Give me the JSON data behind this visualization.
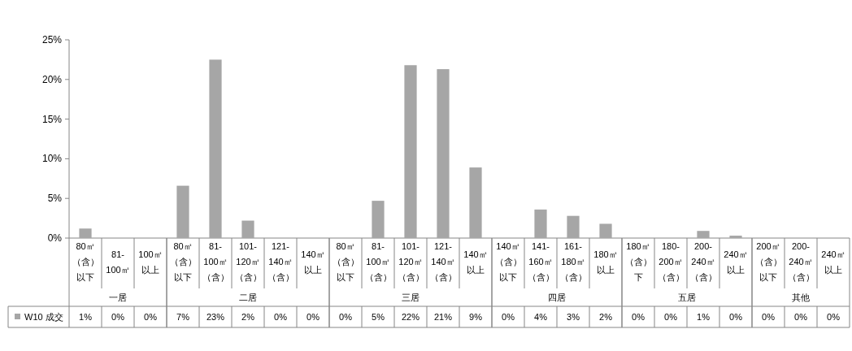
{
  "chart_data": [
    {
      "type": "bar",
      "title": "一居",
      "categories": [
        "80㎡（含）以下",
        "81-100㎡",
        "100㎡以上"
      ],
      "series": [
        {
          "name": "W10 成交",
          "color": "#a6a6a6",
          "values": [
            1.2,
            0,
            0
          ],
          "value_labels": [
            "1%",
            "0%",
            "0%"
          ]
        }
      ],
      "ylim": [
        0,
        25
      ],
      "yticks": [
        {
          "value": 0,
          "label": "0%"
        },
        {
          "value": 5,
          "label": "5%"
        },
        {
          "value": 10,
          "label": "10%"
        },
        {
          "value": 15,
          "label": "15%"
        },
        {
          "value": 20,
          "label": "20%"
        },
        {
          "value": 25,
          "label": "25%"
        }
      ],
      "legend": "bottom left"
    },
    {
      "type": "bar",
      "title": "二居",
      "categories": [
        "80㎡（含）以下",
        "81-100㎡（含）",
        "101-120㎡（含）",
        "121-140㎡（含）",
        "140㎡以上"
      ],
      "series": [
        {
          "color": "#a6a6a6",
          "values": [
            6.6,
            22.5,
            2.2,
            0,
            0
          ],
          "value_labels": [
            "7%",
            "23%",
            "2%",
            "0%",
            "0%"
          ]
        }
      ],
      "ylim": [
        0,
        25
      ],
      "tick_labels": "x"
    },
    {
      "type": "bar",
      "title": "三居",
      "categories": [
        "80㎡（含）以下",
        "81-100㎡（含）",
        "101-120㎡（含）",
        "121-140㎡（含）",
        "140㎡以上"
      ],
      "series": [
        {
          "color": "#a6a6a6",
          "values": [
            0,
            4.7,
            21.8,
            21.3,
            8.9
          ],
          "value_labels": [
            "0%",
            "5%",
            "22%",
            "21%",
            "9%"
          ]
        }
      ],
      "ylim": [
        0,
        25
      ],
      "tick_labels": "x"
    },
    {
      "type": "bar",
      "title": "四居",
      "categories": [
        "140㎡（含）以下",
        "141-160㎡（含）",
        "161-180㎡（含）",
        "180㎡以上"
      ],
      "series": [
        {
          "color": "#a6a6a6",
          "values": [
            0,
            3.6,
            2.8,
            1.8
          ],
          "value_labels": [
            "0%",
            "4%",
            "3%",
            "2%"
          ]
        }
      ],
      "ylim": [
        0,
        25
      ],
      "tick_labels": "x"
    },
    {
      "type": "bar",
      "title": "五居",
      "categories": [
        "180㎡（含）下",
        "180-200㎡（含）",
        "200-240㎡（含）",
        "240㎡以上"
      ],
      "series": [
        {
          "color": "#a6a6a6",
          "values": [
            0,
            0,
            0.9,
            0.3
          ],
          "value_labels": [
            "0%",
            "0%",
            "1%",
            "0%"
          ]
        }
      ],
      "ylim": [
        0,
        25
      ],
      "tick_labels": "x"
    },
    {
      "type": "bar",
      "title": "其他",
      "categories": [
        "200㎡（含）以下",
        "200-240㎡（含）",
        "240㎡以上"
      ],
      "series": [
        {
          "color": "#a6a6a6",
          "values": [
            0,
            0,
            0
          ],
          "value_labels": [
            "0%",
            "0%",
            "0%"
          ]
        }
      ],
      "ylim": [
        0,
        25
      ],
      "tick_labels": "x"
    }
  ]
}
